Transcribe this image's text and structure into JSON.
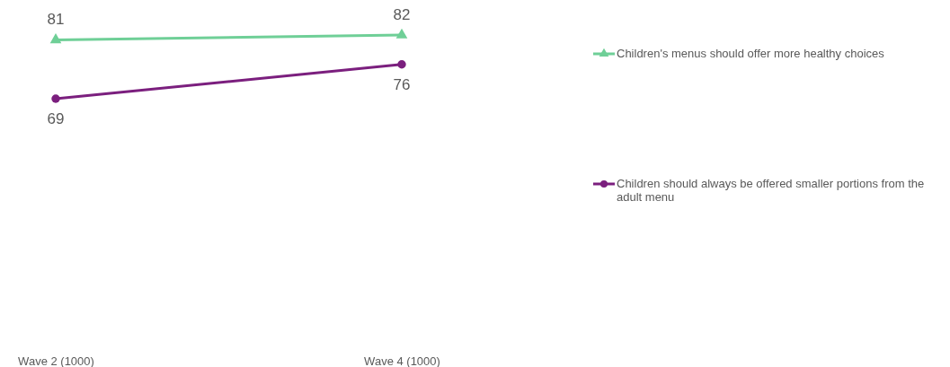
{
  "chart_data": {
    "type": "line",
    "categories": [
      "Wave 2 (1000)",
      "Wave 4 (1000)"
    ],
    "series": [
      {
        "name": "Children's menus should offer more healthy choices",
        "color": "#6fcf97",
        "values": [
          81,
          82
        ],
        "marker": "triangle"
      },
      {
        "name": "Children should always be offered smaller portions from the adult menu",
        "color": "#7b1f7e",
        "values": [
          69,
          76
        ],
        "marker": "circle"
      }
    ],
    "data_labels": true,
    "legend": "right",
    "line_style": "solid"
  }
}
